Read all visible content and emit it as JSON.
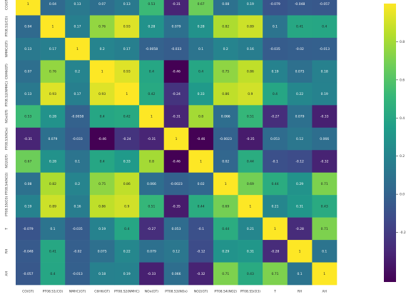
{
  "chart_data": {
    "type": "heatmap",
    "x": [
      "CO(GT)",
      "PT08.S1(CO)",
      "NMHC(GT)",
      "C6H6(GT)",
      "PT08.S2(NMHC)",
      "NOx(GT)",
      "PT08.S3(NOx)",
      "NO2(GT)",
      "PT08.S4(NO2)",
      "PT08.S5(O3)",
      "T",
      "RH",
      "AH"
    ],
    "y": [
      "CO(GT)",
      "PT08.S1(CO)",
      "NMHC(GT)",
      "C6H6(GT)",
      "PT08.S2(NMHC)",
      "NOx(GT)",
      "PT08.S3(NOx)",
      "NO2(GT)",
      "PT08.S4(NO2)",
      "PT08.S5(O3)",
      "T",
      "RH",
      "AH"
    ],
    "values": [
      [
        1,
        0.04,
        0.13,
        0.07,
        0.13,
        0.53,
        -0.31,
        0.67,
        0.08,
        0.19,
        -0.079,
        -0.048,
        -0.057
      ],
      [
        0.04,
        1,
        0.17,
        0.76,
        0.93,
        0.28,
        0.079,
        0.28,
        0.82,
        0.89,
        0.1,
        0.41,
        0.4
      ],
      [
        0.13,
        0.17,
        1,
        0.2,
        0.17,
        -0.0058,
        -0.033,
        0.1,
        0.2,
        0.16,
        -0.035,
        -0.02,
        -0.013
      ],
      [
        0.07,
        0.76,
        0.2,
        1,
        0.93,
        0.4,
        -0.46,
        0.4,
        0.75,
        0.86,
        0.19,
        0.075,
        0.18
      ],
      [
        0.13,
        0.93,
        0.17,
        0.93,
        1,
        0.42,
        -0.24,
        0.33,
        0.86,
        0.9,
        0.4,
        0.22,
        0.19
      ],
      [
        0.53,
        0.28,
        -0.0058,
        0.4,
        0.42,
        1,
        -0.31,
        0.8,
        0.066,
        0.51,
        -0.27,
        0.079,
        -0.33
      ],
      [
        -0.31,
        0.079,
        -0.033,
        -0.46,
        -0.24,
        -0.31,
        1,
        -0.46,
        -0.0023,
        -0.35,
        0.053,
        0.12,
        0.066
      ],
      [
        0.67,
        0.28,
        0.1,
        0.4,
        0.33,
        0.8,
        -0.46,
        1,
        0.02,
        0.44,
        -0.1,
        -0.12,
        -0.32
      ],
      [
        0.08,
        0.82,
        0.2,
        0.75,
        0.86,
        0.066,
        -0.0023,
        0.02,
        1,
        0.69,
        0.44,
        0.29,
        0.71
      ],
      [
        0.19,
        0.89,
        0.16,
        0.86,
        0.9,
        0.51,
        -0.35,
        0.44,
        0.69,
        1,
        0.21,
        0.31,
        0.43
      ],
      [
        -0.079,
        0.1,
        -0.035,
        0.19,
        0.4,
        -0.27,
        0.053,
        -0.1,
        0.44,
        0.21,
        1,
        -0.28,
        0.71
      ],
      [
        -0.048,
        0.41,
        -0.02,
        0.075,
        0.22,
        0.079,
        0.12,
        -0.12,
        0.29,
        0.31,
        -0.28,
        1,
        0.1
      ],
      [
        -0.057,
        0.4,
        -0.013,
        0.18,
        0.19,
        -0.33,
        0.066,
        -0.32,
        0.71,
        0.43,
        0.71,
        0.1,
        1
      ]
    ],
    "clim": [
      -0.46,
      1
    ],
    "cticks": [
      0.8,
      0.6,
      0.4,
      0.2,
      {
        "value": 0,
        "label": "0.0"
      },
      -0.2
    ],
    "colormap": [
      "#440154",
      "#482878",
      "#3e4989",
      "#31688e",
      "#26828e",
      "#1f9e89",
      "#35b779",
      "#6ece58",
      "#b5de2b",
      "#fde725"
    ]
  }
}
